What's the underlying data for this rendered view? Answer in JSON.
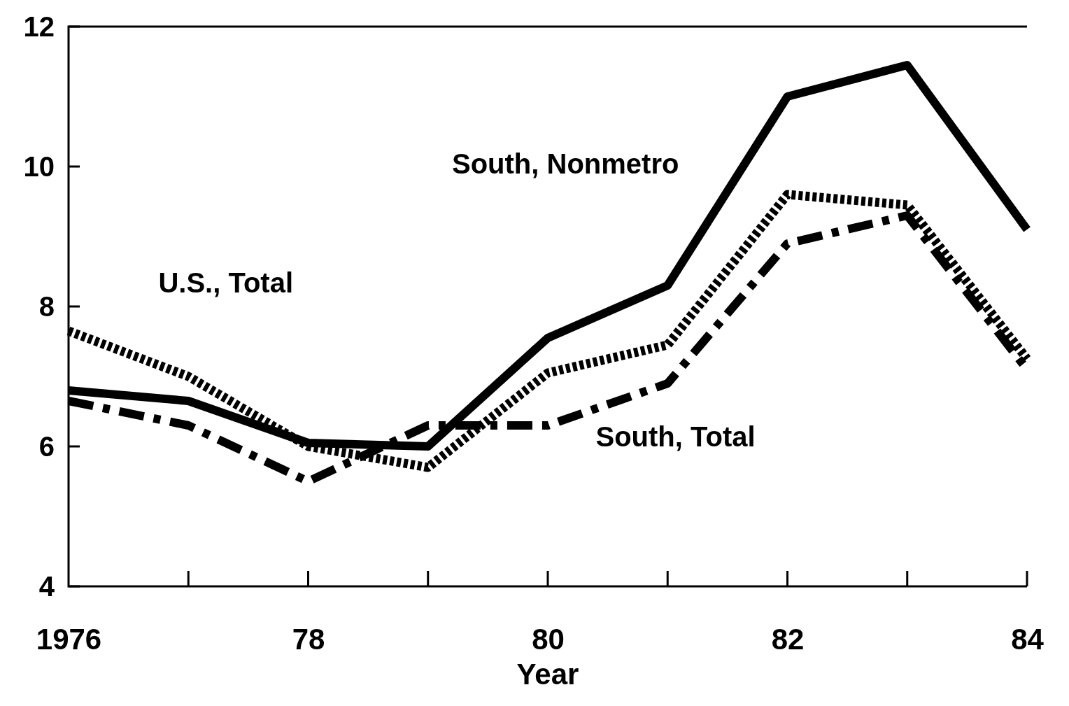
{
  "chart_data": {
    "type": "line",
    "xlabel": "Year",
    "x": [
      1976,
      1977,
      1978,
      1979,
      1980,
      1981,
      1982,
      1983,
      1984
    ],
    "series": [
      {
        "name": "South, Nonmetro",
        "color": "#000000",
        "line_style": "solid",
        "values": [
          6.8,
          6.65,
          6.05,
          6.0,
          7.55,
          8.3,
          11.0,
          11.45,
          9.1
        ]
      },
      {
        "name": "U.S., Total",
        "color": "#000000",
        "line_style": "dotted",
        "values": [
          7.65,
          7.0,
          6.0,
          5.7,
          7.05,
          7.45,
          9.6,
          9.45,
          7.25
        ]
      },
      {
        "name": "South, Total",
        "color": "#000000",
        "line_style": "dashed",
        "values": [
          6.65,
          6.3,
          5.5,
          6.3,
          6.3,
          6.9,
          8.9,
          9.3,
          7.1
        ]
      }
    ],
    "xlim": [
      1976,
      1984
    ],
    "ylim": [
      4,
      12
    ],
    "xticks": [
      1976,
      {
        "value": 1978,
        "label": "78"
      },
      {
        "value": 1980,
        "label": "80"
      },
      {
        "value": 1982,
        "label": "82"
      },
      {
        "value": 1984,
        "label": "84"
      }
    ],
    "yticks": [
      4,
      6,
      8,
      10,
      12
    ],
    "grid": false,
    "marker": "none"
  }
}
